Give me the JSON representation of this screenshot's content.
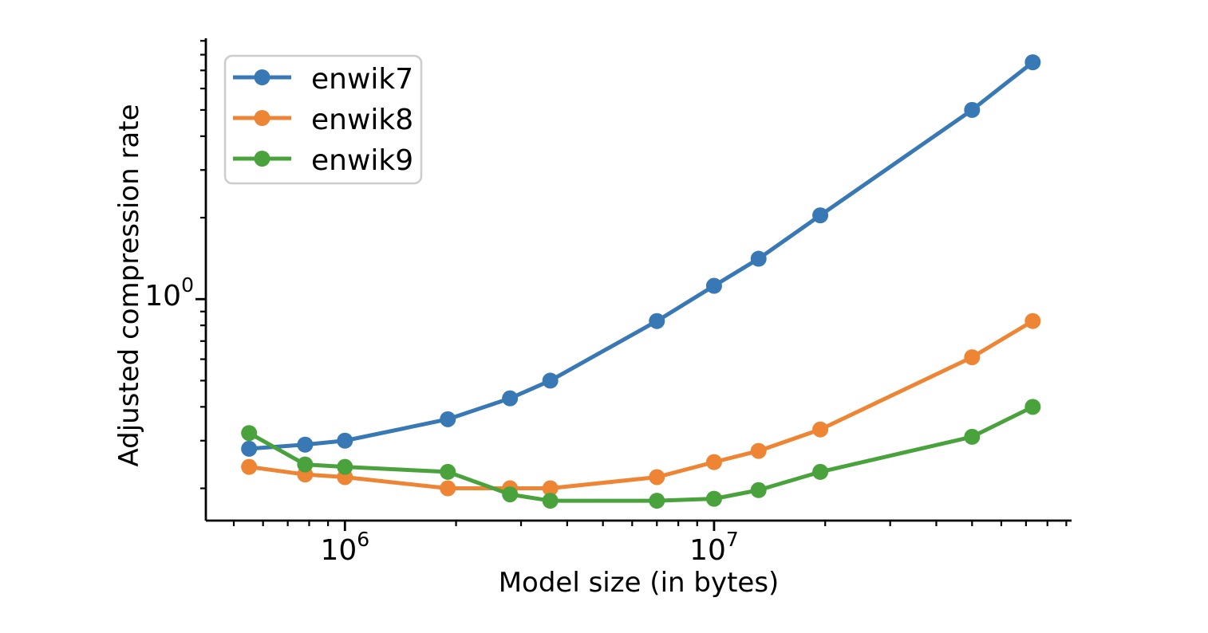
{
  "figure": {
    "background": "#ffffff",
    "spine_color": "#000000",
    "legend_border_color": "#cccccc"
  },
  "chart_data": {
    "type": "line",
    "title": "",
    "xlabel": "Model size (in bytes)",
    "ylabel": "Adjusted compression rate",
    "x_scale": "log",
    "y_scale": "log",
    "xlim": [
      420000,
      93000000
    ],
    "ylim": [
      0.152,
      9.2
    ],
    "x_major_ticks": [
      1000000,
      10000000
    ],
    "y_major_ticks": [
      1
    ],
    "grid": false,
    "legend": {
      "position": "upper left",
      "entries": [
        "enwik7",
        "enwik8",
        "enwik9"
      ]
    },
    "x": [
      550000,
      780000,
      1000000,
      1900000,
      2800000,
      3600000,
      7000000,
      10000000,
      13200000,
      19400000,
      50000000,
      73000000
    ],
    "series": [
      {
        "name": "enwik7",
        "color": "#3878b4",
        "values": [
          0.28,
          0.29,
          0.3,
          0.36,
          0.43,
          0.5,
          0.83,
          1.12,
          1.41,
          2.04,
          5.0,
          7.5
        ]
      },
      {
        "name": "enwik8",
        "color": "#ee8534",
        "values": [
          0.24,
          0.225,
          0.22,
          0.2,
          0.2,
          0.2,
          0.22,
          0.25,
          0.275,
          0.33,
          0.61,
          0.83
        ]
      },
      {
        "name": "enwik9",
        "color": "#4aa23c",
        "values": [
          0.32,
          0.245,
          0.24,
          0.23,
          0.19,
          0.18,
          0.18,
          0.183,
          0.197,
          0.23,
          0.31,
          0.4
        ]
      }
    ]
  }
}
